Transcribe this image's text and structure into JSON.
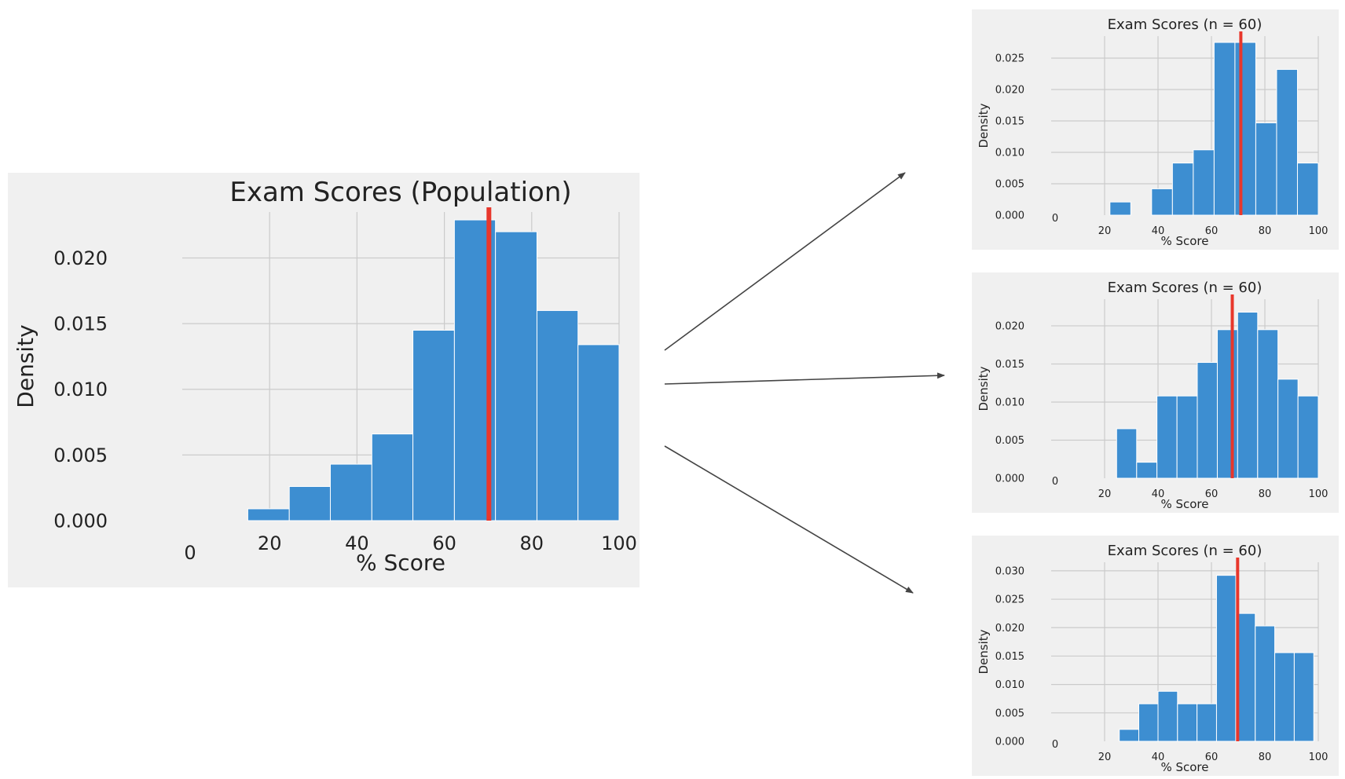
{
  "chart_data": [
    {
      "type": "bar",
      "title": "Exam Scores (Population)",
      "xlabel": "% Score",
      "ylabel": "Density",
      "xlim": [
        0,
        100
      ],
      "ylim": [
        0,
        0.0235
      ],
      "grid": true,
      "xticks": [
        "0",
        "20",
        "40",
        "60",
        "80",
        "100"
      ],
      "yticks": [
        "0.000",
        "0.005",
        "0.010",
        "0.015",
        "0.020"
      ],
      "bins": [
        {
          "x0": 15.0,
          "x1": 24.5,
          "y": 0.0009
        },
        {
          "x0": 24.5,
          "x1": 33.9,
          "y": 0.0026
        },
        {
          "x0": 33.9,
          "x1": 43.4,
          "y": 0.0043
        },
        {
          "x0": 43.4,
          "x1": 52.8,
          "y": 0.0066
        },
        {
          "x0": 52.8,
          "x1": 62.3,
          "y": 0.0145
        },
        {
          "x0": 62.3,
          "x1": 71.7,
          "y": 0.0229
        },
        {
          "x0": 71.7,
          "x1": 81.2,
          "y": 0.022
        },
        {
          "x0": 81.2,
          "x1": 90.6,
          "y": 0.016
        },
        {
          "x0": 90.6,
          "x1": 100.0,
          "y": 0.0134
        }
      ],
      "mean_line": 70.2,
      "colors": {
        "bar": "#3d8ed1",
        "mean": "#e8372c",
        "bg": "#f0f0f0",
        "grid": "#cbcbcb"
      }
    },
    {
      "type": "bar",
      "title": "Exam Scores (n = 60)",
      "xlabel": "% Score",
      "ylabel": "Density",
      "xlim": [
        0,
        100
      ],
      "ylim": [
        0,
        0.0285
      ],
      "grid": true,
      "xticks": [
        "0",
        "20",
        "40",
        "60",
        "80",
        "100"
      ],
      "yticks": [
        "0.000",
        "0.005",
        "0.010",
        "0.015",
        "0.020",
        "0.025"
      ],
      "bins": [
        {
          "x0": 22.0,
          "x1": 29.8,
          "y": 0.0021
        },
        {
          "x0": 37.6,
          "x1": 45.4,
          "y": 0.0042
        },
        {
          "x0": 45.4,
          "x1": 53.2,
          "y": 0.0083
        },
        {
          "x0": 53.2,
          "x1": 61.0,
          "y": 0.0104
        },
        {
          "x0": 61.0,
          "x1": 68.8,
          "y": 0.0275
        },
        {
          "x0": 68.8,
          "x1": 76.6,
          "y": 0.0275
        },
        {
          "x0": 76.6,
          "x1": 84.4,
          "y": 0.0147
        },
        {
          "x0": 84.4,
          "x1": 92.2,
          "y": 0.0232
        },
        {
          "x0": 92.2,
          "x1": 100.0,
          "y": 0.0083
        }
      ],
      "mean_line": 71.0,
      "colors": {
        "bar": "#3d8ed1",
        "mean": "#e8372c",
        "bg": "#f0f0f0",
        "grid": "#cbcbcb"
      }
    },
    {
      "type": "bar",
      "title": "Exam Scores (n = 60)",
      "xlabel": "% Score",
      "ylabel": "Density",
      "xlim": [
        0,
        100
      ],
      "ylim": [
        0,
        0.0235
      ],
      "grid": true,
      "xticks": [
        "0",
        "20",
        "40",
        "60",
        "80",
        "100"
      ],
      "yticks": [
        "0.000",
        "0.005",
        "0.010",
        "0.015",
        "0.020"
      ],
      "bins": [
        {
          "x0": 24.5,
          "x1": 32.0,
          "y": 0.0065
        },
        {
          "x0": 32.0,
          "x1": 39.6,
          "y": 0.0021
        },
        {
          "x0": 39.6,
          "x1": 47.1,
          "y": 0.0108
        },
        {
          "x0": 47.1,
          "x1": 54.7,
          "y": 0.0108
        },
        {
          "x0": 54.7,
          "x1": 62.2,
          "y": 0.0152
        },
        {
          "x0": 62.2,
          "x1": 69.8,
          "y": 0.0195
        },
        {
          "x0": 69.8,
          "x1": 77.3,
          "y": 0.0218
        },
        {
          "x0": 77.3,
          "x1": 84.9,
          "y": 0.0195
        },
        {
          "x0": 84.9,
          "x1": 92.4,
          "y": 0.013
        },
        {
          "x0": 92.4,
          "x1": 100.0,
          "y": 0.0108
        }
      ],
      "mean_line": 67.8,
      "colors": {
        "bar": "#3d8ed1",
        "mean": "#e8372c",
        "bg": "#f0f0f0",
        "grid": "#cbcbcb"
      }
    },
    {
      "type": "bar",
      "title": "Exam Scores (n = 60)",
      "xlabel": "% Score",
      "ylabel": "Density",
      "xlim": [
        0,
        100
      ],
      "ylim": [
        0,
        0.0315
      ],
      "grid": true,
      "xticks": [
        "0",
        "20",
        "40",
        "60",
        "80",
        "100"
      ],
      "yticks": [
        "0.000",
        "0.005",
        "0.010",
        "0.015",
        "0.020",
        "0.025",
        "0.030"
      ],
      "bins": [
        {
          "x0": 25.5,
          "x1": 32.8,
          "y": 0.0021
        },
        {
          "x0": 32.8,
          "x1": 40.0,
          "y": 0.0066
        },
        {
          "x0": 40.0,
          "x1": 47.3,
          "y": 0.0088
        },
        {
          "x0": 47.3,
          "x1": 54.6,
          "y": 0.0066
        },
        {
          "x0": 54.6,
          "x1": 61.9,
          "y": 0.0066
        },
        {
          "x0": 61.9,
          "x1": 69.1,
          "y": 0.0292
        },
        {
          "x0": 69.1,
          "x1": 76.4,
          "y": 0.0225
        },
        {
          "x0": 76.4,
          "x1": 83.7,
          "y": 0.0203
        },
        {
          "x0": 83.7,
          "x1": 91.0,
          "y": 0.0156
        },
        {
          "x0": 91.0,
          "x1": 98.3,
          "y": 0.0156
        }
      ],
      "mean_line": 69.8,
      "colors": {
        "bar": "#3d8ed1",
        "mean": "#e8372c",
        "bg": "#f0f0f0",
        "grid": "#cbcbcb"
      }
    }
  ],
  "arrow_color": "#444444"
}
